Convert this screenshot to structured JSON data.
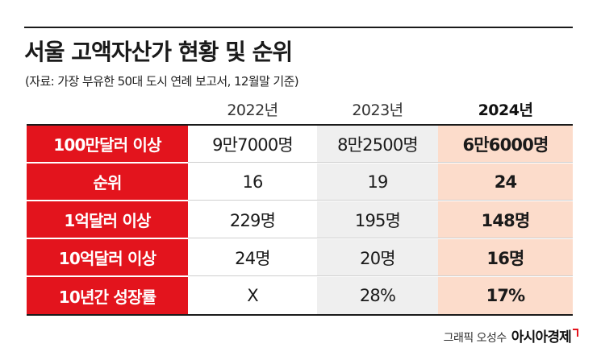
{
  "title": "서울 고액자산가 현황 및 순위",
  "source": "(자료: 가장 부유한 50대 도시 연례 보고서, 12월말 기준)",
  "credit": "그래픽 오성수",
  "logo": "아시아경제",
  "chart_data": {
    "type": "table",
    "columns": [
      "2022년",
      "2023년",
      "2024년"
    ],
    "rows": [
      {
        "label": "100만달러 이상",
        "values": [
          "9만7000명",
          "8만2500명",
          "6만6000명"
        ]
      },
      {
        "label": "순위",
        "values": [
          "16",
          "19",
          "24"
        ]
      },
      {
        "label": "1억달러 이상",
        "values": [
          "229명",
          "195명",
          "148명"
        ]
      },
      {
        "label": "10억달러 이상",
        "values": [
          "24명",
          "20명",
          "16명"
        ]
      },
      {
        "label": "10년간 성장률",
        "values": [
          "X",
          "28%",
          "17%"
        ]
      }
    ],
    "colors": {
      "label_bg": "#e3141d",
      "col_2023_bg": "#efefef",
      "col_2024_bg": "#fcdccb"
    }
  }
}
